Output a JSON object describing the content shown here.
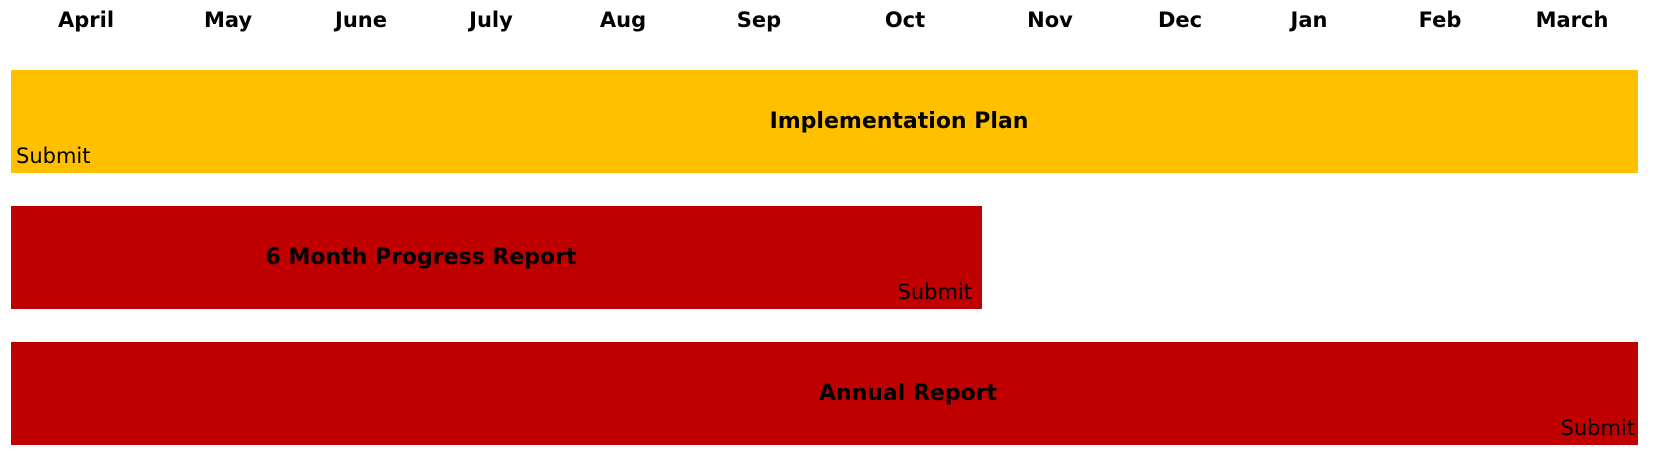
{
  "months": [
    "April",
    "May",
    "June",
    "July",
    "Aug",
    "Sep",
    "Oct",
    "Nov",
    "Dec",
    "Jan",
    "Feb",
    "March"
  ],
  "bars": [
    {
      "title": "Implementation Plan",
      "note": "Submit",
      "color": "#FFC000",
      "start_month": "April",
      "end_month": "March",
      "submit_at": "start"
    },
    {
      "title": "6 Month Progress Report",
      "note": "Submit",
      "color": "#C00000",
      "start_month": "April",
      "end_month": "Oct",
      "submit_at": "end"
    },
    {
      "title": "Annual Report",
      "note": "Submit",
      "color": "#C00000",
      "start_month": "April",
      "end_month": "March",
      "submit_at": "end"
    }
  ]
}
